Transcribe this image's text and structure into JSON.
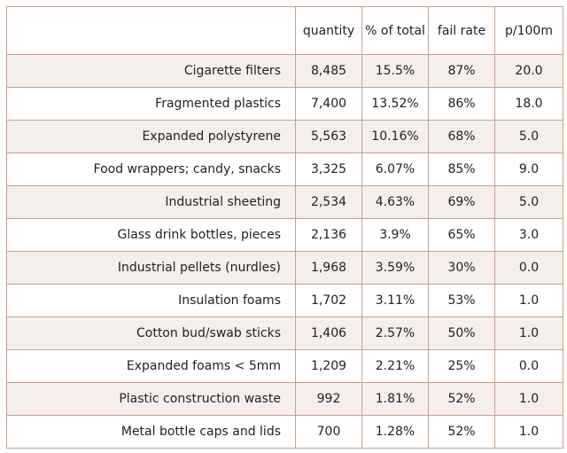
{
  "table": {
    "headers": [
      "",
      "quantity",
      "% of total",
      "fail rate",
      "p/100m"
    ],
    "rows": [
      [
        "Cigarette filters",
        "8,485",
        "15.5%",
        "87%",
        "20.0"
      ],
      [
        "Fragmented plastics",
        "7,400",
        "13.52%",
        "86%",
        "18.0"
      ],
      [
        "Expanded polystyrene",
        "5,563",
        "10.16%",
        "68%",
        "5.0"
      ],
      [
        "Food wrappers; candy, snacks",
        "3,325",
        "6.07%",
        "85%",
        "9.0"
      ],
      [
        "Industrial sheeting",
        "2,534",
        "4.63%",
        "69%",
        "5.0"
      ],
      [
        "Glass drink bottles, pieces",
        "2,136",
        "3.9%",
        "65%",
        "3.0"
      ],
      [
        "Industrial pellets (nurdles)",
        "1,968",
        "3.59%",
        "30%",
        "0.0"
      ],
      [
        "Insulation foams",
        "1,702",
        "3.11%",
        "53%",
        "1.0"
      ],
      [
        "Cotton bud/swab sticks",
        "1,406",
        "2.57%",
        "50%",
        "1.0"
      ],
      [
        "Expanded foams < 5mm",
        "1,209",
        "2.21%",
        "25%",
        "0.0"
      ],
      [
        "Plastic construction waste",
        "992",
        "1.81%",
        "52%",
        "1.0"
      ],
      [
        "Metal bottle caps and lids",
        "700",
        "1.28%",
        "52%",
        "1.0"
      ]
    ],
    "colors": {
      "border": "#c8a088",
      "stripe": "#f5efeb",
      "text": "#222222"
    }
  }
}
